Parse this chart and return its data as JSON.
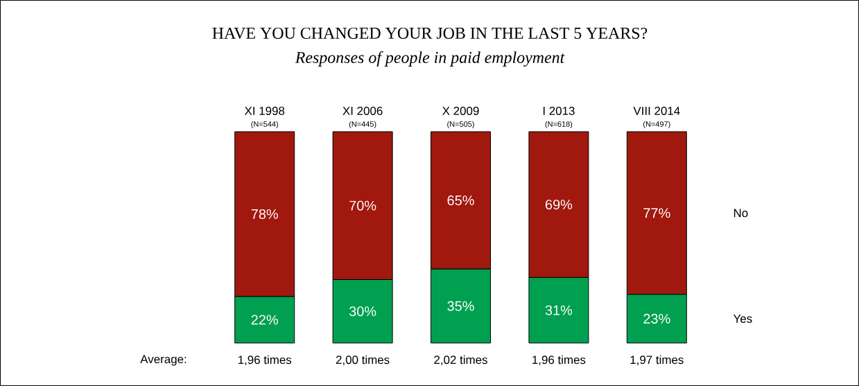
{
  "chart_data": {
    "type": "bar",
    "stacked": true,
    "title": "HAVE YOU CHANGED YOUR JOB IN THE LAST 5 YEARS?",
    "subtitle": "Responses of people in paid employment",
    "categories": [
      "XI 1998",
      "XI 2006",
      "X 2009",
      "I 2013",
      "VIII 2014"
    ],
    "series": [
      {
        "name": "Yes",
        "color": "#00a050",
        "values": [
          22,
          30,
          35,
          31,
          23
        ],
        "value_labels": [
          "22%",
          "30%",
          "35%",
          "31%",
          "23%"
        ]
      },
      {
        "name": "No",
        "color": "#a0180e",
        "values": [
          78,
          70,
          65,
          69,
          77
        ],
        "value_labels": [
          "78%",
          "70%",
          "65%",
          "69%",
          "77%"
        ]
      }
    ],
    "annotations": [
      "(N=544)",
      "(N=445)",
      "(N=505)",
      "(N=618)",
      "(N=497)",
      "Average:",
      "1,96 times",
      "2,00 times",
      "2,02 times",
      "1,96 times",
      "1,97 times"
    ]
  }
}
